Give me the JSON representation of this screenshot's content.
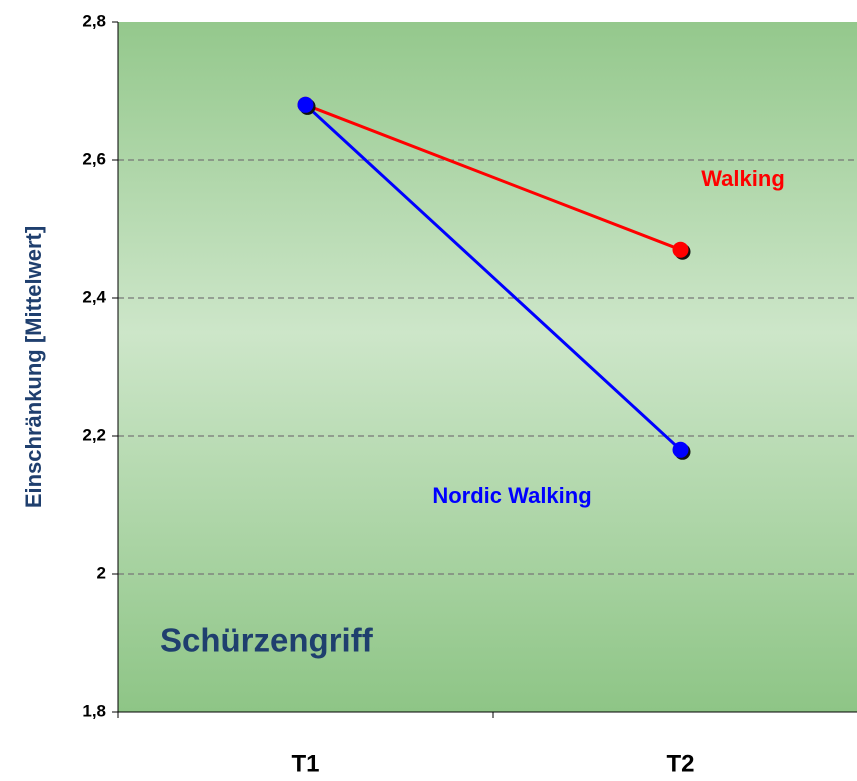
{
  "chart_data": {
    "type": "line",
    "ylabel": "Einschränkung [Mittelwert]",
    "annotation": "Schürzengriff",
    "categories": [
      "T1",
      "T2"
    ],
    "series": [
      {
        "name": "Walking",
        "color": "#ff0000",
        "values": [
          2.68,
          2.47
        ]
      },
      {
        "name": "Nordic Walking",
        "color": "#0000ff",
        "values": [
          2.68,
          2.18
        ]
      }
    ],
    "ylim": [
      1.8,
      2.8
    ],
    "yticks": [
      {
        "value": 1.8,
        "label": "1,8"
      },
      2,
      {
        "value": 2.2,
        "label": "2,2"
      },
      {
        "value": 2.4,
        "label": "2,4"
      },
      {
        "value": 2.6,
        "label": "2,6"
      },
      {
        "value": 2.8,
        "label": "2,8"
      }
    ],
    "grid": true
  }
}
